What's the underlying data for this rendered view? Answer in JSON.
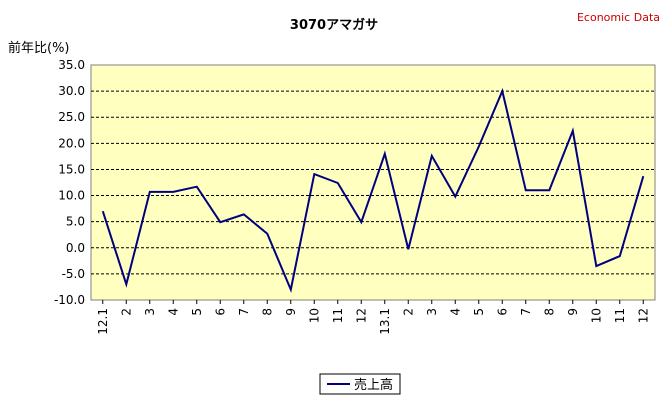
{
  "header": {
    "brand": "Economic Data"
  },
  "chart_data": {
    "type": "line",
    "title": "3070アマガサ",
    "ylabel": "前年比(%)",
    "xlabel": "",
    "ylim": [
      -10.0,
      35.0
    ],
    "ytick_step": 5.0,
    "grid": true,
    "legend_position": "bottom-center",
    "categories": [
      "12.1",
      "2",
      "3",
      "4",
      "5",
      "6",
      "7",
      "8",
      "9",
      "10",
      "11",
      "12",
      "13.1",
      "2",
      "3",
      "4",
      "5",
      "6",
      "7",
      "8",
      "9",
      "10",
      "11",
      "12"
    ],
    "series": [
      {
        "name": "売上高",
        "color": "#000080",
        "values": [
          7.0,
          -7.0,
          10.7,
          10.7,
          11.7,
          4.9,
          6.4,
          2.7,
          -8.0,
          14.1,
          12.4,
          4.9,
          18.0,
          -0.3,
          17.6,
          9.8,
          19.4,
          30.0,
          11.0,
          11.0,
          22.4,
          -3.5,
          -1.6,
          13.7
        ]
      }
    ],
    "colors": {
      "plot_background": "#ffffc0",
      "grid": "#000000",
      "line": "#000080"
    }
  }
}
